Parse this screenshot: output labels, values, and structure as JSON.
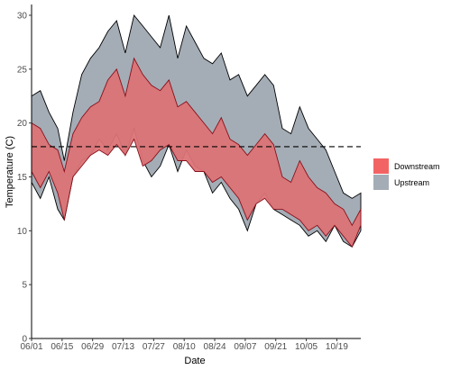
{
  "chart_data": {
    "type": "area",
    "title": "",
    "xlabel": "Date",
    "ylabel": "Temperature (C)",
    "x_tick_labels": [
      "06/01",
      "06/15",
      "06/29",
      "07/13",
      "07/27",
      "08/10",
      "08/24",
      "09/07",
      "09/21",
      "10/05",
      "10/19"
    ],
    "xlim": [
      "2023-06-01",
      "2023-10-30"
    ],
    "ylim": [
      0,
      31
    ],
    "y_ticks": [
      0,
      5,
      10,
      15,
      20,
      25,
      30
    ],
    "grid": false,
    "legend_position": "right",
    "reference_line": {
      "y": 17.8,
      "style": "dashed"
    },
    "series": [
      {
        "name": "Upstream",
        "color": "#a4adb6",
        "x": [
          "2023-06-01",
          "2023-06-05",
          "2023-06-09",
          "2023-06-13",
          "2023-06-16",
          "2023-06-20",
          "2023-06-24",
          "2023-06-28",
          "2023-07-02",
          "2023-07-06",
          "2023-07-10",
          "2023-07-14",
          "2023-07-18",
          "2023-07-22",
          "2023-07-26",
          "2023-07-30",
          "2023-08-03",
          "2023-08-07",
          "2023-08-11",
          "2023-08-15",
          "2023-08-19",
          "2023-08-23",
          "2023-08-27",
          "2023-08-31",
          "2023-09-04",
          "2023-09-08",
          "2023-09-12",
          "2023-09-16",
          "2023-09-20",
          "2023-09-24",
          "2023-09-28",
          "2023-10-02",
          "2023-10-06",
          "2023-10-10",
          "2023-10-14",
          "2023-10-18",
          "2023-10-22",
          "2023-10-26",
          "2023-10-30"
        ],
        "max": [
          22.5,
          23.0,
          21.0,
          19.5,
          16.5,
          21.0,
          24.5,
          26.0,
          27.0,
          28.5,
          29.5,
          26.5,
          30.0,
          29.0,
          28.0,
          27.0,
          30.0,
          26.0,
          29.0,
          27.5,
          26.0,
          25.5,
          26.5,
          24.0,
          24.5,
          22.5,
          23.5,
          24.5,
          23.5,
          19.5,
          19.0,
          21.5,
          19.5,
          18.5,
          17.5,
          15.5,
          13.5,
          13.0,
          13.5
        ],
        "min": [
          14.5,
          13.0,
          15.0,
          12.0,
          11.0,
          15.0,
          16.5,
          17.0,
          18.5,
          17.5,
          19.0,
          17.0,
          19.5,
          16.5,
          15.0,
          16.0,
          18.0,
          15.5,
          17.5,
          16.0,
          15.5,
          13.5,
          14.5,
          13.0,
          12.0,
          10.0,
          12.5,
          13.5,
          12.0,
          11.5,
          11.0,
          10.5,
          9.5,
          10.0,
          9.0,
          10.5,
          9.0,
          8.5,
          10.0
        ]
      },
      {
        "name": "Downstream",
        "color": "#db7376",
        "x": [
          "2023-06-01",
          "2023-06-05",
          "2023-06-09",
          "2023-06-13",
          "2023-06-16",
          "2023-06-20",
          "2023-06-24",
          "2023-06-28",
          "2023-07-02",
          "2023-07-06",
          "2023-07-10",
          "2023-07-14",
          "2023-07-18",
          "2023-07-22",
          "2023-07-26",
          "2023-07-30",
          "2023-08-03",
          "2023-08-07",
          "2023-08-11",
          "2023-08-15",
          "2023-08-19",
          "2023-08-23",
          "2023-08-27",
          "2023-08-31",
          "2023-09-04",
          "2023-09-08",
          "2023-09-12",
          "2023-09-16",
          "2023-09-20",
          "2023-09-24",
          "2023-09-28",
          "2023-10-02",
          "2023-10-06",
          "2023-10-10",
          "2023-10-14",
          "2023-10-18",
          "2023-10-22",
          "2023-10-26",
          "2023-10-30"
        ],
        "max": [
          20.0,
          19.5,
          18.0,
          17.5,
          15.5,
          19.0,
          20.5,
          21.5,
          22.0,
          24.0,
          25.0,
          22.5,
          26.0,
          24.5,
          23.5,
          23.0,
          24.0,
          21.5,
          22.0,
          21.0,
          20.0,
          19.0,
          20.5,
          18.5,
          18.0,
          17.0,
          18.0,
          19.0,
          18.0,
          15.0,
          14.5,
          16.5,
          15.0,
          14.0,
          13.5,
          12.5,
          12.0,
          10.5,
          12.0
        ],
        "min": [
          15.5,
          14.0,
          15.5,
          13.5,
          11.0,
          15.0,
          16.0,
          17.0,
          17.5,
          17.0,
          18.0,
          17.0,
          18.5,
          16.0,
          16.5,
          17.5,
          18.0,
          16.5,
          16.5,
          15.5,
          15.5,
          14.5,
          15.0,
          14.0,
          13.0,
          11.0,
          12.5,
          13.0,
          12.0,
          12.0,
          11.5,
          11.0,
          10.0,
          10.5,
          9.5,
          10.5,
          9.5,
          8.5,
          10.5
        ]
      }
    ]
  }
}
